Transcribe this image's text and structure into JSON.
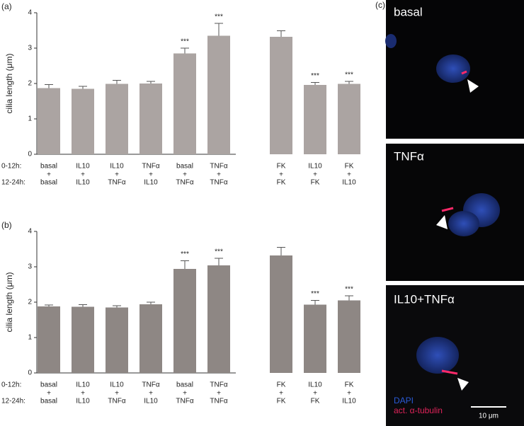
{
  "chart_data": [
    {
      "type": "bar",
      "panel": "(a)",
      "y_label": "cilia length (μm)",
      "axes": true,
      "row_labels": [
        "0-12h:",
        "12-24h:"
      ],
      "category_joiner": "+",
      "categories": [
        {
          "top": "basal",
          "bottom": "basal"
        },
        {
          "top": "IL10",
          "bottom": "IL10"
        },
        {
          "top": "IL10",
          "bottom": "TNFα"
        },
        {
          "top": "TNFα",
          "bottom": "IL10"
        },
        {
          "top": "basal",
          "bottom": "TNFα"
        },
        {
          "top": "TNFα",
          "bottom": "TNFα"
        }
      ],
      "values": [
        1.87,
        1.85,
        1.99,
        2.0,
        2.85,
        3.35
      ],
      "errors": [
        0.1,
        0.07,
        0.1,
        0.06,
        0.15,
        0.35
      ],
      "annotations": [
        null,
        null,
        null,
        null,
        "***",
        "***"
      ],
      "color": "#aba4a2",
      "ylim": [
        0,
        4
      ],
      "yticks": [
        0,
        1,
        2,
        3,
        4
      ]
    },
    {
      "type": "bar",
      "axes": false,
      "category_joiner": "+",
      "categories": [
        {
          "top": "FK",
          "bottom": "FK"
        },
        {
          "top": "IL10",
          "bottom": "FK"
        },
        {
          "top": "FK",
          "bottom": "IL10"
        }
      ],
      "values": [
        3.32,
        1.96,
        1.99
      ],
      "errors": [
        0.17,
        0.07,
        0.07
      ],
      "annotations": [
        null,
        "***",
        "***"
      ],
      "color": "#aba4a2",
      "ylim": [
        0,
        4
      ]
    },
    {
      "type": "bar",
      "panel": "(b)",
      "y_label": "cilia length (μm)",
      "axes": true,
      "row_labels": [
        "0-12h:",
        "12-24h:"
      ],
      "category_joiner": "+",
      "categories": [
        {
          "top": "basal",
          "bottom": "basal"
        },
        {
          "top": "IL10",
          "bottom": "IL10"
        },
        {
          "top": "IL10",
          "bottom": "TNFα"
        },
        {
          "top": "TNFα",
          "bottom": "IL10"
        },
        {
          "top": "basal",
          "bottom": "TNFα"
        },
        {
          "top": "TNFα",
          "bottom": "TNFα"
        }
      ],
      "values": [
        1.88,
        1.87,
        1.85,
        1.94,
        2.94,
        3.04
      ],
      "errors": [
        0.04,
        0.06,
        0.05,
        0.06,
        0.23,
        0.2
      ],
      "annotations": [
        null,
        null,
        null,
        null,
        "***",
        "***"
      ],
      "color": "#8e8784",
      "ylim": [
        0,
        4
      ],
      "yticks": [
        0,
        1,
        2,
        3,
        4
      ]
    },
    {
      "type": "bar",
      "axes": false,
      "category_joiner": "+",
      "categories": [
        {
          "top": "FK",
          "bottom": "FK"
        },
        {
          "top": "IL10",
          "bottom": "FK"
        },
        {
          "top": "FK",
          "bottom": "IL10"
        }
      ],
      "values": [
        3.32,
        1.93,
        2.05
      ],
      "errors": [
        0.23,
        0.12,
        0.13
      ],
      "annotations": [
        null,
        "***",
        "***"
      ],
      "color": "#8e8784",
      "ylim": [
        0,
        4
      ]
    }
  ],
  "panel_c": {
    "label": "(c)",
    "images": [
      {
        "label": "basal"
      },
      {
        "label": "TNFα"
      },
      {
        "label": "IL10+TNFα"
      }
    ],
    "legend": [
      {
        "name": "DAPI",
        "color": "#2a5bd7"
      },
      {
        "name": "act. α-tubulin",
        "color": "#e0235a"
      }
    ],
    "scale_bar": "10 μm"
  }
}
